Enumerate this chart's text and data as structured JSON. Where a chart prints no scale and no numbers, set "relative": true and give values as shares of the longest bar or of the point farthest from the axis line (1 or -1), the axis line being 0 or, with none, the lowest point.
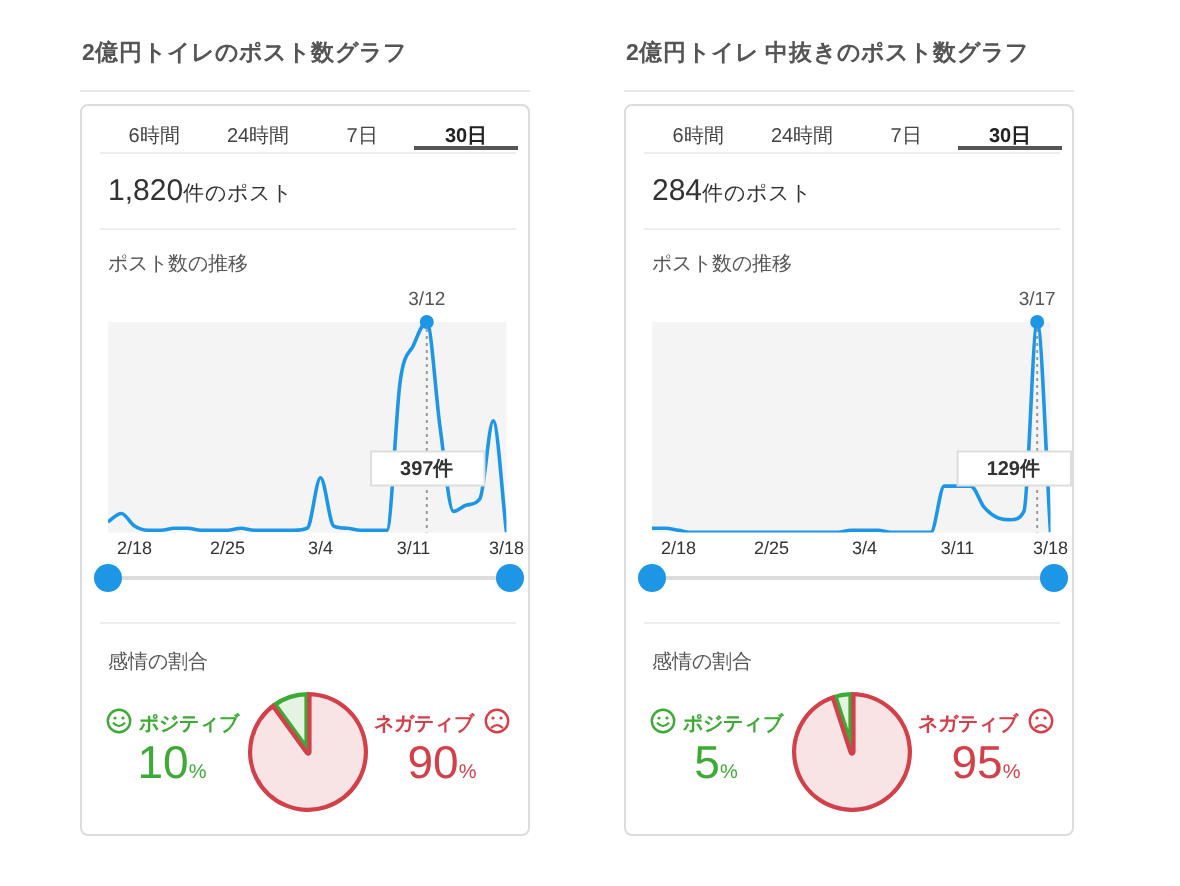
{
  "chart_data": [
    {
      "type": "other",
      "title": "2億円トイレのポスト数グラフ",
      "subtitle": "1,820件のポスト",
      "annotations": [
        "6時間",
        "24時間",
        "7日",
        "30日"
      ]
    },
    {
      "type": "line",
      "title": "ポスト数の推移",
      "relative": true,
      "marker": "none",
      "x": [
        "--02-16",
        "--02-17",
        "--02-18",
        "--02-19",
        "--02-20",
        "--02-21",
        "--02-22",
        "--02-23",
        "--02-24",
        "--02-25",
        "--02-26",
        "--02-27",
        "--02-28",
        "--03-01",
        "--03-02",
        "--03-03",
        "--03-04",
        "--03-05",
        "--03-06",
        "--03-07",
        "--03-08",
        "--03-09",
        "--03-10",
        "--03-11",
        "--03-12",
        "--03-13",
        "--03-14",
        "--03-15",
        "--03-16",
        "--03-17",
        "--03-18"
      ],
      "xlim": [
        "--02-16",
        "--03-18"
      ],
      "xticks": [
        {
          "value": "--02-18",
          "label": "2/18"
        },
        {
          "value": "--02-25",
          "label": "2/25"
        },
        {
          "value": "--03-04",
          "label": "3/4"
        },
        {
          "value": "--03-11",
          "label": "3/11"
        },
        {
          "value": "--03-18",
          "label": "3/18"
        }
      ],
      "series": [
        {
          "color": "#1e96e6",
          "values": [
            0.05,
            0.09,
            0.03,
            0.01,
            0.01,
            0.02,
            0.02,
            0.01,
            0.01,
            0.01,
            0.02,
            0.01,
            0.01,
            0.01,
            0.01,
            0.02,
            0.26,
            0.03,
            0.02,
            0.01,
            0.01,
            0.01,
            0.72,
            0.89,
            1,
            0.5,
            0.1,
            0.13,
            0.16,
            0.53,
            0
          ]
        },
        {
          "type": "scatter",
          "marker": "circle",
          "color": "#1e96e6",
          "x": [
            "--03-12"
          ],
          "values": [
            1
          ]
        }
      ],
      "ref_lines": [
        {
          "axis": "x",
          "value": "--03-12",
          "label": "3/12",
          "line_style": "dotted",
          "color": "#999999"
        }
      ],
      "annotations": [
        {
          "text": "397件",
          "x": "--03-12"
        }
      ]
    },
    {
      "type": "pie",
      "title": "感情の割合",
      "categories": [
        "ポジティブ",
        "ネガティブ"
      ],
      "values": [
        10,
        90
      ],
      "colors": [
        "#3daa35",
        "#d2404a"
      ],
      "value_labels": [
        "10%",
        "90%"
      ]
    },
    {
      "type": "other",
      "title": "2億円トイレ 中抜きのポスト数グラフ",
      "subtitle": "284件のポスト",
      "annotations": [
        "6時間",
        "24時間",
        "7日",
        "30日"
      ]
    },
    {
      "type": "line",
      "title": "ポスト数の推移",
      "relative": true,
      "marker": "none",
      "x": [
        "--02-16",
        "--02-17",
        "--02-18",
        "--02-19",
        "--02-20",
        "--02-21",
        "--02-22",
        "--02-23",
        "--02-24",
        "--02-25",
        "--02-26",
        "--02-27",
        "--02-28",
        "--03-01",
        "--03-02",
        "--03-03",
        "--03-04",
        "--03-05",
        "--03-06",
        "--03-07",
        "--03-08",
        "--03-09",
        "--03-10",
        "--03-11",
        "--03-12",
        "--03-13",
        "--03-14",
        "--03-15",
        "--03-16",
        "--03-17",
        "--03-18"
      ],
      "xlim": [
        "--02-16",
        "--03-18"
      ],
      "xticks": [
        {
          "value": "--02-18",
          "label": "2/18"
        },
        {
          "value": "--02-25",
          "label": "2/25"
        },
        {
          "value": "--03-04",
          "label": "3/4"
        },
        {
          "value": "--03-11",
          "label": "3/11"
        },
        {
          "value": "--03-18",
          "label": "3/18"
        }
      ],
      "series": [
        {
          "color": "#1e96e6",
          "values": [
            0.02,
            0.02,
            0.01,
            0,
            0,
            0,
            0,
            0,
            0,
            0,
            0,
            0,
            0,
            0,
            0,
            0.01,
            0.01,
            0.01,
            0,
            0,
            0,
            0,
            0.22,
            null,
            0.22,
            0.12,
            0.07,
            0.06,
            0.1,
            1,
            0
          ]
        },
        {
          "type": "scatter",
          "marker": "circle",
          "color": "#1e96e6",
          "x": [
            "--03-17"
          ],
          "values": [
            1
          ]
        }
      ],
      "ref_lines": [
        {
          "axis": "x",
          "value": "--03-17",
          "label": "3/17",
          "line_style": "dotted",
          "color": "#999999"
        }
      ],
      "annotations": [
        {
          "text": "129件",
          "x": "--03-17"
        }
      ]
    },
    {
      "type": "pie",
      "title": "感情の割合",
      "categories": [
        "ポジティブ",
        "ネガティブ"
      ],
      "values": [
        5,
        95
      ],
      "colors": [
        "#3daa35",
        "#d2404a"
      ],
      "value_labels": [
        "5%",
        "95%"
      ]
    }
  ]
}
